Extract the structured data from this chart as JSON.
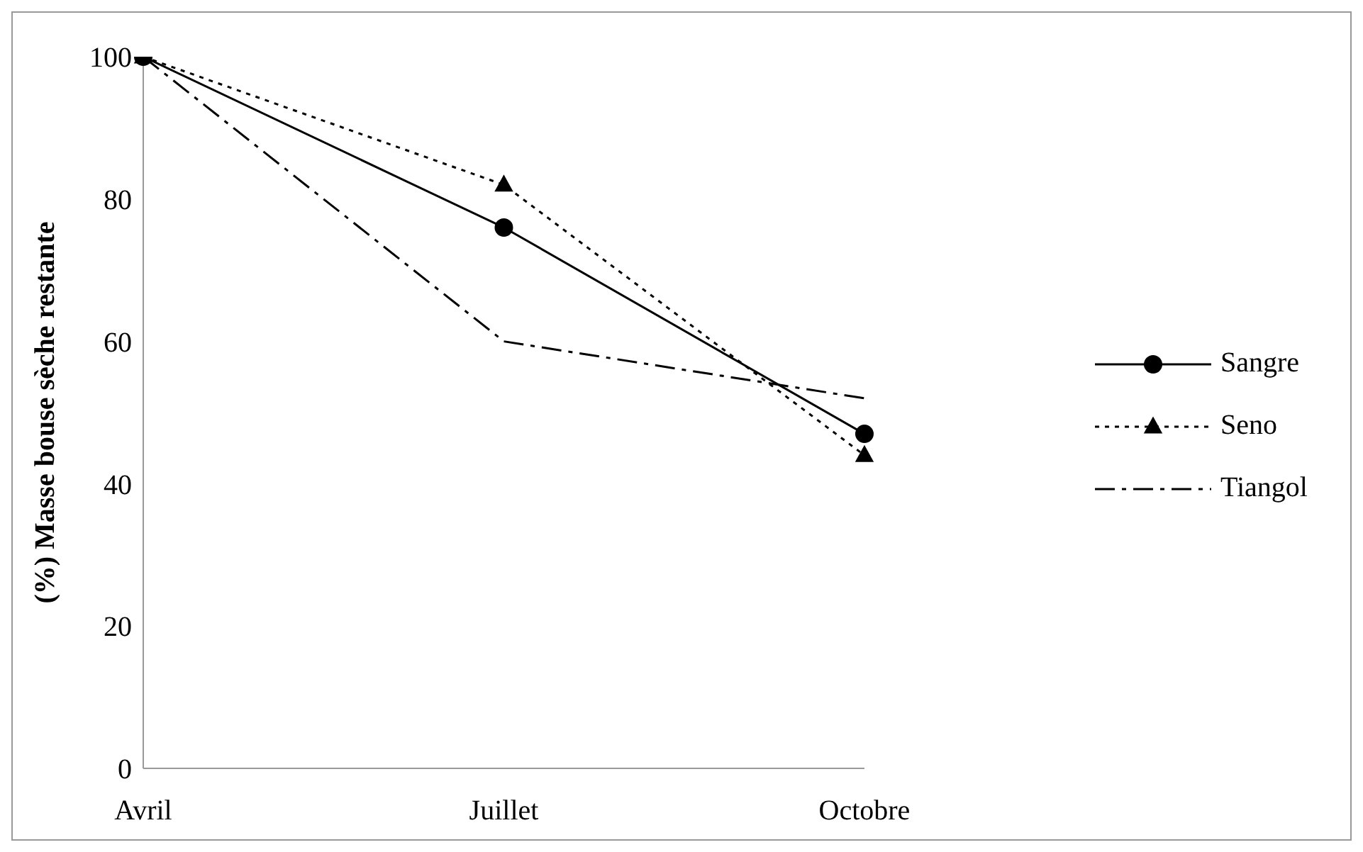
{
  "chart_data": {
    "type": "line",
    "ylabel": "(%) Masse bouse sèche restante",
    "categories": [
      "Avril",
      "Juillet",
      "Octobre"
    ],
    "ylim": [
      0,
      100
    ],
    "yticks": [
      0,
      20,
      40,
      60,
      80,
      100
    ],
    "grid": false,
    "legend": "right",
    "series": [
      {
        "name": "Sangre",
        "color": "#000000",
        "values": [
          100,
          76,
          47
        ],
        "marker": "circle",
        "line_style": "solid"
      },
      {
        "name": "Seno",
        "color": "#000000",
        "values": [
          100,
          82,
          44
        ],
        "marker": "triangle",
        "line_style": "dotted"
      },
      {
        "name": "Tiangol",
        "color": "#000000",
        "values": [
          100,
          60,
          52
        ],
        "marker": "none",
        "line_style": "dashed"
      }
    ]
  }
}
